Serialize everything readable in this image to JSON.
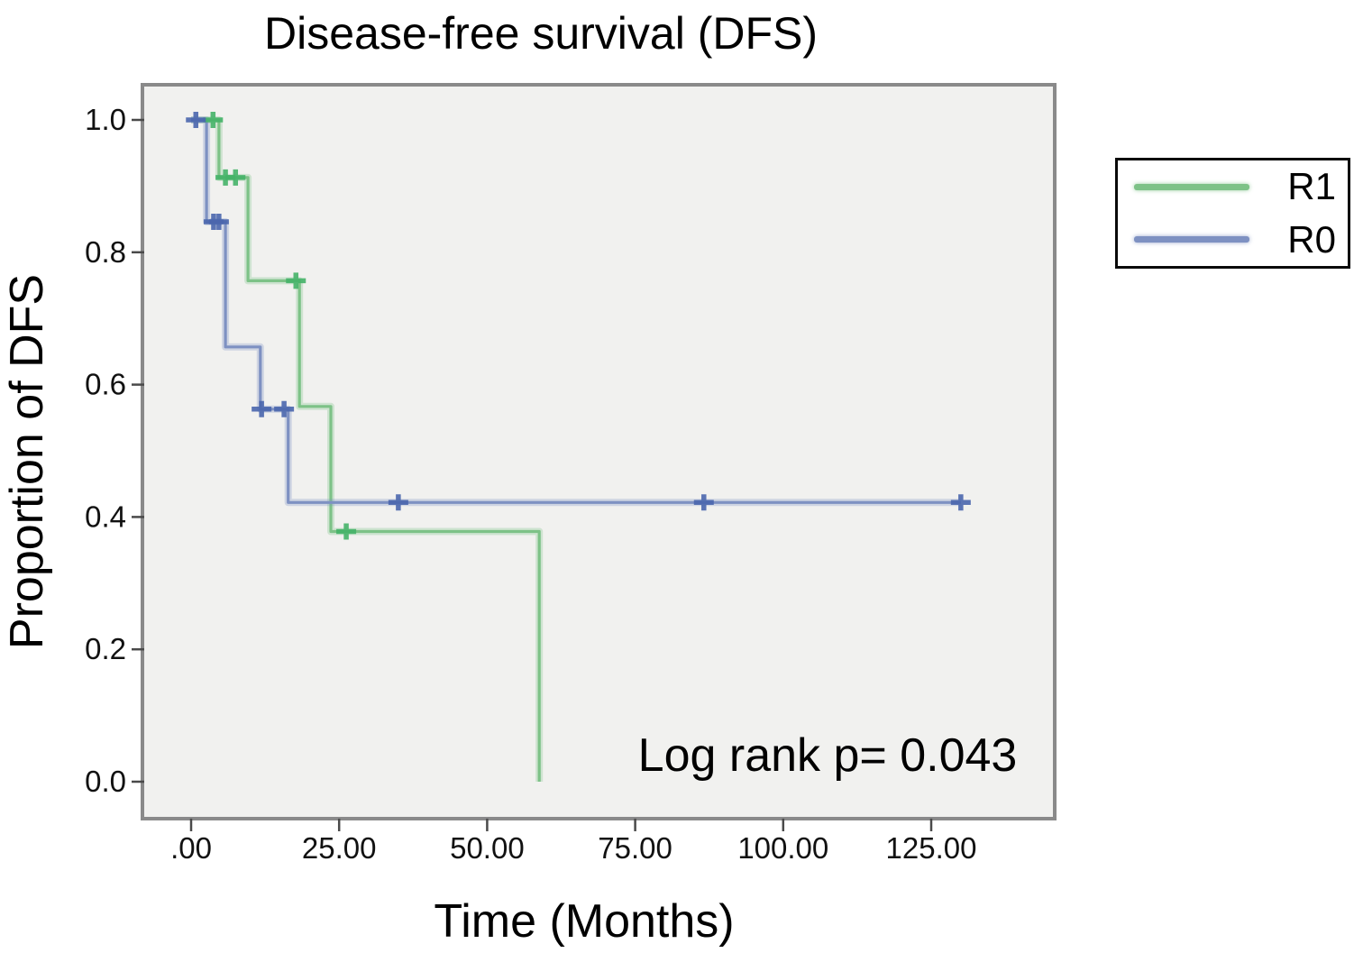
{
  "chart_data": {
    "type": "line",
    "subtype": "kaplan_meier_step",
    "title": "Disease-free survival (DFS)",
    "xlabel": "Time (Months)",
    "ylabel": "Proportion of DFS",
    "annotation": "Log rank p= 0.043",
    "grid": false,
    "plot_bg": "#f1f1ef",
    "plot_border_color": "#8a8a8a",
    "tick_color": "#4a4a4a",
    "legend_position": "outside-right-top",
    "x_ticks": {
      "values": [
        0,
        25,
        50,
        75,
        100,
        125
      ],
      "labels": [
        ".00",
        "25.00",
        "50.00",
        "75.00",
        "100.00",
        "125.00"
      ]
    },
    "y_ticks": {
      "values": [
        1.0,
        0.8,
        0.6,
        0.4,
        0.2,
        0.0
      ],
      "labels": [
        "1.0",
        "0.8",
        "0.6",
        "0.4",
        "0.2",
        "0.0"
      ]
    },
    "xlim": [
      -8.2,
      145.9
    ],
    "ylim": [
      -0.056,
      1.053
    ],
    "series": [
      {
        "name": "R1",
        "color": "#7dc287",
        "censor_color": "#45b368",
        "steps_time_proportion": [
          [
            0,
            1.0
          ],
          [
            4.7,
            0.913
          ],
          [
            9.6,
            0.757
          ],
          [
            18.3,
            0.567
          ],
          [
            23.6,
            0.378
          ],
          [
            58.8,
            0.0
          ]
        ],
        "censor_marks_time_proportion": [
          [
            3.7,
            1.0
          ],
          [
            5.8,
            0.913
          ],
          [
            7.5,
            0.913
          ],
          [
            17.7,
            0.757
          ],
          [
            26.2,
            0.378
          ]
        ],
        "end_time": 58.8
      },
      {
        "name": "R0",
        "color": "#7e91c2",
        "censor_color": "#4a66ad",
        "steps_time_proportion": [
          [
            0,
            1.0
          ],
          [
            2.6,
            0.846
          ],
          [
            5.8,
            0.657
          ],
          [
            11.7,
            0.563
          ],
          [
            16.4,
            0.422
          ]
        ],
        "censor_marks_time_proportion": [
          [
            0.8,
            1.0
          ],
          [
            3.8,
            0.846
          ],
          [
            4.7,
            0.846
          ],
          [
            11.9,
            0.563
          ],
          [
            15.7,
            0.563
          ],
          [
            35.0,
            0.422
          ],
          [
            86.6,
            0.422
          ],
          [
            130.0,
            0.422
          ]
        ],
        "end_time": 130.0
      }
    ]
  }
}
